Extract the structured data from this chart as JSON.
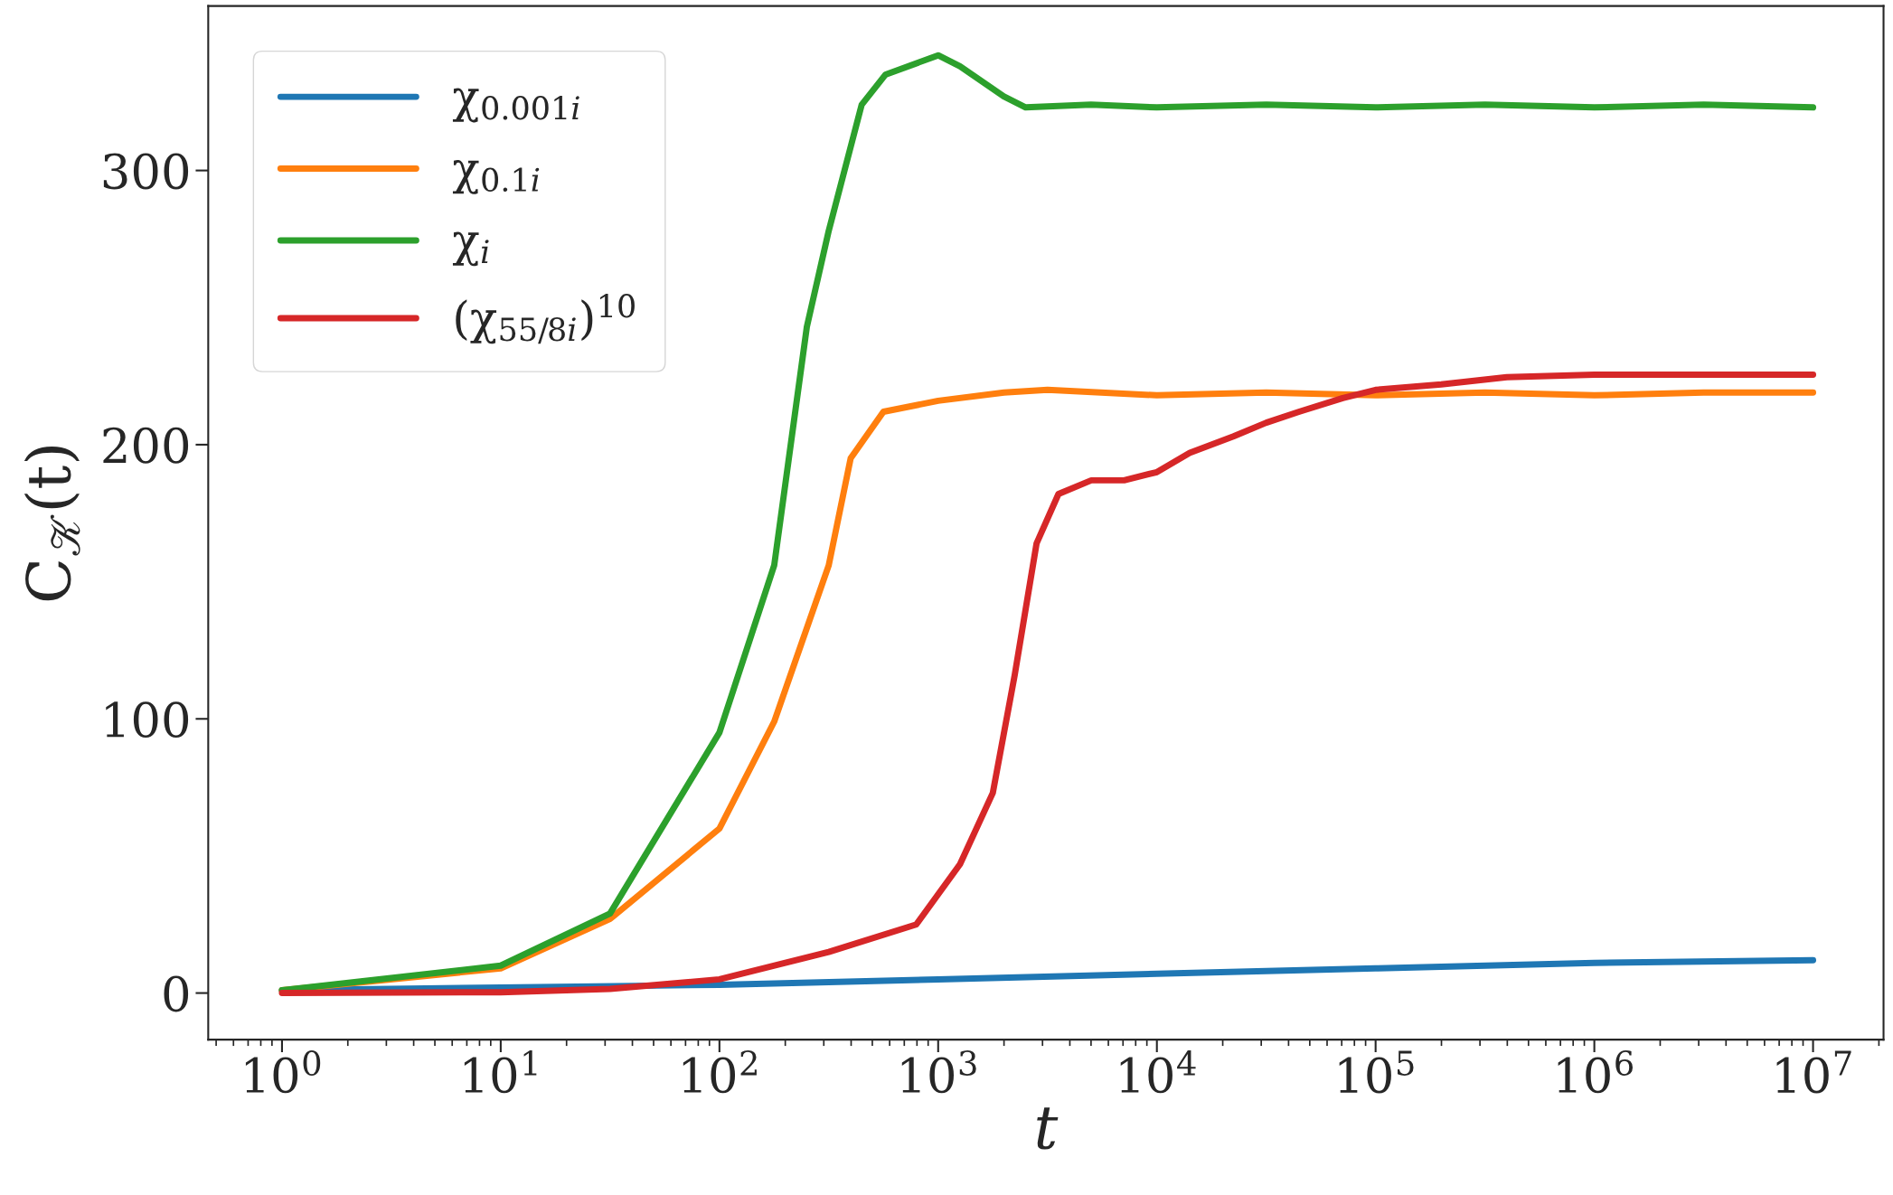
{
  "chart_data": {
    "type": "line",
    "xlabel": "t",
    "ylabel": "C$_{𝒦}$(t)",
    "log": "x",
    "legend": "top left",
    "grid": false,
    "line_style": "solid",
    "marker": "none",
    "xlim": [
      0.46,
      21000000
    ],
    "ylim": [
      -17,
      360
    ],
    "xticks": [
      {
        "value": 1,
        "label": "10$^{0}$"
      },
      {
        "value": 10,
        "label": "10$^{1}$"
      },
      {
        "value": 100,
        "label": "10$^{2}$"
      },
      {
        "value": 1000,
        "label": "10$^{3}$"
      },
      {
        "value": 10000,
        "label": "10$^{4}$"
      },
      {
        "value": 100000,
        "label": "10$^{5}$"
      },
      {
        "value": 1000000,
        "label": "10$^{6}$"
      },
      {
        "value": 10000000,
        "label": "10$^{7}$"
      }
    ],
    "yticks": [
      0,
      100,
      200,
      300
    ],
    "series": [
      {
        "name": "χ$_{0.001i}$",
        "color": "#1f77b4",
        "x": [
          1,
          10,
          100,
          1000,
          10000,
          100000,
          1000000,
          10000000
        ],
        "values": [
          1,
          2,
          3,
          5,
          7,
          9,
          11,
          12
        ]
      },
      {
        "name": "χ$_{0.1i}$",
        "color": "#ff7f0e",
        "x": [
          1,
          10,
          31.6,
          100,
          178,
          316,
          398,
          562,
          1000,
          2000,
          3162,
          10000,
          31623,
          100000,
          316228,
          1000000,
          3162278,
          10000000
        ],
        "values": [
          1,
          9,
          27,
          60,
          99,
          156,
          195,
          212,
          216,
          219,
          220,
          218,
          219,
          218,
          219,
          218,
          219,
          219
        ]
      },
      {
        "name": "χ$_{i}$",
        "color": "#2ca02c",
        "x": [
          1,
          10,
          31.6,
          100,
          178,
          251,
          316,
          447,
          575,
          1000,
          1259,
          1995,
          2512,
          5000,
          10000,
          31623,
          100000,
          316228,
          1000000,
          3162278,
          10000000
        ],
        "values": [
          1,
          10,
          29,
          95,
          156,
          243,
          278,
          324,
          335,
          342,
          338,
          327,
          323,
          324,
          323,
          324,
          323,
          324,
          323,
          324,
          323
        ]
      },
      {
        "name": "(χ$_{55/8i}$)$^{10}$",
        "color": "#d62728",
        "x": [
          1,
          10,
          31.6,
          100,
          316,
          794,
          1259,
          1778,
          2239,
          2818,
          3548,
          5012,
          7079,
          10000,
          14125,
          22387,
          31623,
          44668,
          70795,
          100000,
          199526,
          398107,
          1000000,
          10000000
        ],
        "values": [
          0,
          0.3,
          1.5,
          5,
          15,
          25,
          47,
          73,
          116,
          164,
          182,
          187,
          187,
          190,
          197,
          203,
          208,
          212,
          217,
          220,
          222,
          224.6,
          225.5,
          225.5
        ]
      }
    ]
  }
}
